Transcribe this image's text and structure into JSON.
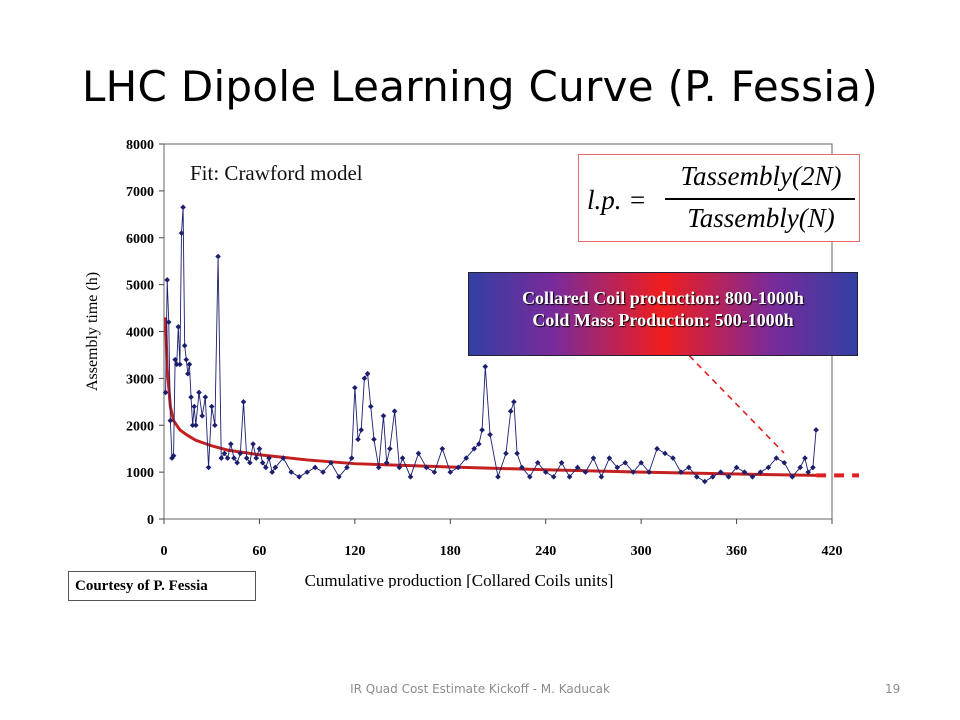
{
  "slide": {
    "title": "LHC Dipole Learning Curve (P. Fessia)",
    "footer": "IR Quad Cost Estimate Kickoff - M. Kaducak",
    "page_number": "19"
  },
  "annotations": {
    "fit_label": "Fit: Crawford model",
    "formula": {
      "lhs": "l.p. =",
      "numerator": "Tassembly(2N)",
      "denominator": "Tassembly(N)"
    },
    "banner_line1": "Collared Coil production: 800-1000h",
    "banner_line2": "Cold Mass Production: 500-1000h",
    "courtesy": "Courtesy of P. Fessia"
  },
  "colors": {
    "data_series": "#1b1f6e",
    "fit_curve": "#c42020",
    "extension": "#e02020"
  },
  "chart_data": {
    "type": "line",
    "title": "",
    "xlabel": "Cumulative production [Collared Coils units]",
    "ylabel": "Assembly time (h)",
    "xlim": [
      0,
      420
    ],
    "ylim": [
      0,
      8000
    ],
    "xticks": [
      0,
      60,
      120,
      180,
      240,
      300,
      360,
      420
    ],
    "yticks": [
      0,
      1000,
      2000,
      3000,
      4000,
      5000,
      6000,
      7000,
      8000
    ],
    "grid": false,
    "series": [
      {
        "x": [
          1,
          2,
          3,
          4,
          5,
          6,
          7,
          8,
          9,
          10,
          11,
          12,
          13,
          14,
          15,
          16,
          17,
          18,
          19,
          20,
          22,
          24,
          26,
          28,
          30,
          32,
          34,
          36,
          38,
          40,
          42,
          44,
          46,
          48,
          50,
          52,
          54,
          56,
          58,
          60,
          62,
          64,
          66,
          68,
          70,
          75,
          80,
          85,
          90,
          95,
          100,
          105,
          110,
          115,
          118,
          120,
          122,
          124,
          126,
          128,
          130,
          132,
          135,
          138,
          140,
          142,
          145,
          148,
          150,
          155,
          160,
          165,
          170,
          175,
          180,
          185,
          190,
          195,
          198,
          200,
          202,
          205,
          210,
          215,
          218,
          220,
          222,
          225,
          230,
          235,
          240,
          245,
          250,
          255,
          260,
          265,
          270,
          275,
          280,
          285,
          290,
          295,
          300,
          305,
          310,
          315,
          320,
          325,
          330,
          335,
          340,
          345,
          350,
          355,
          360,
          365,
          370,
          375,
          380,
          385,
          390,
          395,
          400,
          403,
          405,
          408,
          410
        ],
        "y": [
          2700,
          5100,
          4200,
          2100,
          1300,
          1350,
          3400,
          3300,
          4100,
          3300,
          6100,
          6650,
          3700,
          3400,
          3100,
          3300,
          2600,
          2000,
          2400,
          2000,
          2700,
          2200,
          2600,
          1100,
          2400,
          2000,
          5600,
          1300,
          1400,
          1300,
          1600,
          1300,
          1200,
          1400,
          2500,
          1300,
          1200,
          1600,
          1300,
          1500,
          1200,
          1100,
          1300,
          1000,
          1100,
          1300,
          1000,
          900,
          1000,
          1100,
          1000,
          1200,
          900,
          1100,
          1300,
          2800,
          1700,
          1900,
          3000,
          3100,
          2400,
          1700,
          1100,
          2200,
          1200,
          1500,
          2300,
          1100,
          1300,
          900,
          1400,
          1100,
          1000,
          1500,
          1000,
          1100,
          1300,
          1500,
          1600,
          1900,
          3250,
          1800,
          900,
          1400,
          2300,
          2500,
          1400,
          1100,
          900,
          1200,
          1000,
          900,
          1200,
          900,
          1100,
          1000,
          1300,
          900,
          1300,
          1100,
          1200,
          1000,
          1200,
          1000,
          1500,
          1400,
          1300,
          1000,
          1100,
          900,
          800,
          900,
          1000,
          900,
          1100,
          1000,
          900,
          1000,
          1100,
          1300,
          1200,
          900,
          1100,
          1300,
          1000,
          1100,
          1900
        ]
      },
      {
        "type": "fit",
        "x": [
          1,
          2,
          4,
          6,
          10,
          15,
          20,
          30,
          40,
          60,
          90,
          120,
          180,
          240,
          300,
          360,
          410
        ],
        "y": [
          4300,
          3200,
          2400,
          2100,
          1900,
          1780,
          1680,
          1560,
          1470,
          1370,
          1260,
          1180,
          1110,
          1050,
          1000,
          960,
          930
        ]
      }
    ]
  }
}
